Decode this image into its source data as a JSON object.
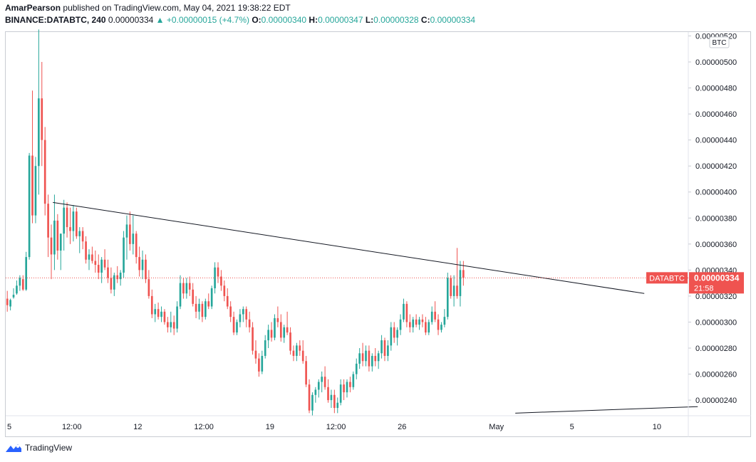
{
  "header": {
    "author": "AmarPearson",
    "published_text": "published on TradingView.com, May 04, 2021 19:38:22 EDT",
    "symbol": "BINANCE:DATABTC, 240",
    "last_price": "0.00000334",
    "change_text": "+0.00000015 (+4.7%)",
    "o_label": "O:",
    "o_value": "0.00000340",
    "h_label": "H:",
    "h_value": "0.00000347",
    "l_label": "L:",
    "l_value": "0.00000328",
    "c_label": "C:",
    "c_value": "0.00000334"
  },
  "footer": {
    "brand": "TradingView"
  },
  "colors": {
    "up": "#26a69a",
    "down": "#ef5350",
    "line": "#131722",
    "price_tag": "#ef5350",
    "dotted": "#ef5350"
  },
  "chart_data": {
    "type": "candlestick",
    "title": "BINANCE:DATABTC, 240",
    "currency_label": "BTC",
    "ylim": [
      2.28e-06,
      5.23e-06
    ],
    "y_ticks": [
      2.4e-06,
      2.6e-06,
      2.8e-06,
      3e-06,
      3.2e-06,
      3.4e-06,
      3.6e-06,
      3.8e-06,
      4e-06,
      4.2e-06,
      4.4e-06,
      4.6e-06,
      4.8e-06,
      5e-06,
      5.2e-06
    ],
    "y_tick_labels": [
      "0.00000240",
      "0.00000260",
      "0.00000280",
      "0.00000300",
      "0.00000320",
      "0.00000340",
      "0.00000360",
      "0.00000380",
      "0.00000400",
      "0.00000420",
      "0.00000440",
      "0.00000460",
      "0.00000480",
      "0.00000500",
      "0.00000520"
    ],
    "x_range": [
      0,
      217
    ],
    "x_ticks": [
      {
        "x": 0,
        "label": "5"
      },
      {
        "x": 21,
        "label": "12:00"
      },
      {
        "x": 42,
        "label": "12"
      },
      {
        "x": 63,
        "label": "12:00"
      },
      {
        "x": 84,
        "label": "19"
      },
      {
        "x": 105,
        "label": "12:00"
      },
      {
        "x": 126,
        "label": "26"
      },
      {
        "x": 156,
        "label": "May"
      },
      {
        "x": 180,
        "label": "5"
      },
      {
        "x": 207,
        "label": "10"
      }
    ],
    "price_label": {
      "symbol": "DATABTC",
      "price": "0.00000334",
      "value": 3.34e-06,
      "countdown": "21:58"
    },
    "trendlines": [
      {
        "from": [
          15,
          3.92e-06
        ],
        "to": [
          203,
          3.22e-06
        ]
      },
      {
        "from": [
          162,
          2.3e-06
        ],
        "to": [
          220,
          2.35e-06
        ]
      }
    ],
    "candles": [
      [
        3.18e-06,
        3.24e-06,
        3.08e-06,
        3.13e-06
      ],
      [
        3.12e-06,
        3.18e-06,
        3.09e-06,
        3.17e-06
      ],
      [
        3.19e-06,
        3.26e-06,
        3.18e-06,
        3.21e-06
      ],
      [
        3.22e-06,
        3.32e-06,
        3.21e-06,
        3.28e-06
      ],
      [
        3.28e-06,
        3.36e-06,
        3.24e-06,
        3.34e-06
      ],
      [
        3.33e-06,
        3.36e-06,
        3.24e-06,
        3.25e-06
      ],
      [
        3.25e-06,
        3.54e-06,
        3.24e-06,
        3.5e-06
      ],
      [
        3.5e-06,
        4.3e-06,
        3.48e-06,
        4.28e-06
      ],
      [
        4.28e-06,
        4.78e-06,
        3.76e-06,
        3.82e-06
      ],
      [
        3.82e-06,
        4.27e-06,
        3.76e-06,
        4.2e-06
      ],
      [
        4.2e-06,
        5.25e-06,
        3.98e-06,
        4.72e-06
      ],
      [
        4.72e-06,
        5e-06,
        4.2e-06,
        4.4e-06
      ],
      [
        4.4e-06,
        4.5e-06,
        3.82e-06,
        3.91e-06
      ],
      [
        3.91e-06,
        3.98e-06,
        3.5e-06,
        3.65e-06
      ],
      [
        3.65e-06,
        3.75e-06,
        3.33e-06,
        3.52e-06
      ],
      [
        3.52e-06,
        3.98e-06,
        3.4e-06,
        3.78e-06
      ],
      [
        3.78e-06,
        3.83e-06,
        3.48e-06,
        3.55e-06
      ],
      [
        3.55e-06,
        3.68e-06,
        3.4e-06,
        3.68e-06
      ],
      [
        3.68e-06,
        3.94e-06,
        3.55e-06,
        3.88e-06
      ],
      [
        3.88e-06,
        3.92e-06,
        3.65e-06,
        3.73e-06
      ],
      [
        3.73e-06,
        3.88e-06,
        3.6e-06,
        3.7e-06
      ],
      [
        3.7e-06,
        3.9e-06,
        3.62e-06,
        3.85e-06
      ],
      [
        3.85e-06,
        3.88e-06,
        3.64e-06,
        3.66e-06
      ],
      [
        3.66e-06,
        3.73e-06,
        3.53e-06,
        3.7e-06
      ],
      [
        3.7e-06,
        3.73e-06,
        3.56e-06,
        3.62e-06
      ],
      [
        3.62e-06,
        3.66e-06,
        3.45e-06,
        3.48e-06
      ],
      [
        3.48e-06,
        3.56e-06,
        3.4e-06,
        3.52e-06
      ],
      [
        3.52e-06,
        3.58e-06,
        3.45e-06,
        3.47e-06
      ],
      [
        3.47e-06,
        3.55e-06,
        3.38e-06,
        3.44e-06
      ],
      [
        3.44e-06,
        3.52e-06,
        3.33e-06,
        3.38e-06
      ],
      [
        3.38e-06,
        3.5e-06,
        3.3e-06,
        3.48e-06
      ],
      [
        3.48e-06,
        3.56e-06,
        3.4e-06,
        3.42e-06
      ],
      [
        3.42e-06,
        3.48e-06,
        3.3e-06,
        3.34e-06
      ],
      [
        3.34e-06,
        3.42e-06,
        3.22e-06,
        3.25e-06
      ],
      [
        3.25e-06,
        3.38e-06,
        3.2e-06,
        3.36e-06
      ],
      [
        3.36e-06,
        3.43e-06,
        3.3e-06,
        3.33e-06
      ],
      [
        3.33e-06,
        3.4e-06,
        3.28e-06,
        3.38e-06
      ],
      [
        3.38e-06,
        3.7e-06,
        3.34e-06,
        3.65e-06
      ],
      [
        3.65e-06,
        3.82e-06,
        3.48e-06,
        3.75e-06
      ],
      [
        3.75e-06,
        3.85e-06,
        3.55e-06,
        3.6e-06
      ],
      [
        3.6e-06,
        3.82e-06,
        3.52e-06,
        3.68e-06
      ],
      [
        3.68e-06,
        3.7e-06,
        3.45e-06,
        3.5e-06
      ],
      [
        3.5e-06,
        3.58e-06,
        3.35e-06,
        3.4e-06
      ],
      [
        3.4e-06,
        3.55e-06,
        3.33e-06,
        3.48e-06
      ],
      [
        3.48e-06,
        3.52e-06,
        3.3e-06,
        3.33e-06
      ],
      [
        3.33e-06,
        3.4e-06,
        3.18e-06,
        3.2e-06
      ],
      [
        3.2e-06,
        3.25e-06,
        3.03e-06,
        3.06e-06
      ],
      [
        3.06e-06,
        3.14e-06,
        3e-06,
        3.1e-06
      ],
      [
        3.1e-06,
        3.15e-06,
        3.02e-06,
        3.04e-06
      ],
      [
        3.04e-06,
        3.12e-06,
        3e-06,
        3.08e-06
      ],
      [
        3.08e-06,
        3.1e-06,
        2.98e-06,
        3e-06
      ],
      [
        3e-06,
        3.04e-06,
        2.92e-06,
        2.96e-06
      ],
      [
        2.96e-06,
        3.08e-06,
        2.92e-06,
        3e-06
      ],
      [
        3e-06,
        3.05e-06,
        2.9e-06,
        2.95e-06
      ],
      [
        2.95e-06,
        3.16e-06,
        2.92e-06,
        3.12e-06
      ],
      [
        3.12e-06,
        3.36e-06,
        3.1e-06,
        3.3e-06
      ],
      [
        3.3e-06,
        3.34e-06,
        3.18e-06,
        3.22e-06
      ],
      [
        3.22e-06,
        3.34e-06,
        3.18e-06,
        3.3e-06
      ],
      [
        3.3e-06,
        3.35e-06,
        3.2e-06,
        3.25e-06
      ],
      [
        3.25e-06,
        3.3e-06,
        3.12e-06,
        3.14e-06
      ],
      [
        3.14e-06,
        3.2e-06,
        3.03e-06,
        3.08e-06
      ],
      [
        3.08e-06,
        3.18e-06,
        3.02e-06,
        3.14e-06
      ],
      [
        3.14e-06,
        3.16e-06,
        3e-06,
        3.04e-06
      ],
      [
        3.04e-06,
        3.18e-06,
        3.02e-06,
        3.16e-06
      ],
      [
        3.16e-06,
        3.22e-06,
        3.1e-06,
        3.12e-06
      ],
      [
        3.12e-06,
        3.28e-06,
        3.1e-06,
        3.26e-06
      ],
      [
        3.26e-06,
        3.46e-06,
        3.22e-06,
        3.42e-06
      ],
      [
        3.42e-06,
        3.46e-06,
        3.3e-06,
        3.35e-06
      ],
      [
        3.35e-06,
        3.4e-06,
        3.24e-06,
        3.28e-06
      ],
      [
        3.28e-06,
        3.32e-06,
        3.16e-06,
        3.2e-06
      ],
      [
        3.2e-06,
        3.26e-06,
        3.1e-06,
        3.12e-06
      ],
      [
        3.12e-06,
        3.16e-06,
        3e-06,
        3.04e-06
      ],
      [
        3.04e-06,
        3.08e-06,
        2.9e-06,
        2.92e-06
      ],
      [
        2.92e-06,
        3.02e-06,
        2.9e-06,
        3e-06
      ],
      [
        3e-06,
        3.1e-06,
        2.96e-06,
        3.06e-06
      ],
      [
        3.06e-06,
        3.12e-06,
        3e-06,
        3.1e-06
      ],
      [
        3.1e-06,
        3.12e-06,
        2.96e-06,
        3.02e-06
      ],
      [
        3.02e-06,
        3.08e-06,
        2.92e-06,
        2.96e-06
      ],
      [
        2.96e-06,
        3e-06,
        2.75e-06,
        2.78e-06
      ],
      [
        2.78e-06,
        2.86e-06,
        2.68e-06,
        2.72e-06
      ],
      [
        2.72e-06,
        2.76e-06,
        2.58e-06,
        2.62e-06
      ],
      [
        2.62e-06,
        2.78e-06,
        2.6e-06,
        2.74e-06
      ],
      [
        2.74e-06,
        2.9e-06,
        2.72e-06,
        2.86e-06
      ],
      [
        2.86e-06,
        2.98e-06,
        2.8e-06,
        2.94e-06
      ],
      [
        2.94e-06,
        3e-06,
        2.85e-06,
        2.88e-06
      ],
      [
        2.88e-06,
        3.06e-06,
        2.86e-06,
        3.03e-06
      ],
      [
        3.03e-06,
        3.12e-06,
        2.96e-06,
        3e-06
      ],
      [
        3e-06,
        3.06e-06,
        2.85e-06,
        2.88e-06
      ],
      [
        2.88e-06,
        2.98e-06,
        2.84e-06,
        2.96e-06
      ],
      [
        2.96e-06,
        3.08e-06,
        2.9e-06,
        2.92e-06
      ],
      [
        2.92e-06,
        2.96e-06,
        2.75e-06,
        2.78e-06
      ],
      [
        2.78e-06,
        2.82e-06,
        2.7e-06,
        2.74e-06
      ],
      [
        2.74e-06,
        2.84e-06,
        2.7e-06,
        2.82e-06
      ],
      [
        2.82e-06,
        2.86e-06,
        2.74e-06,
        2.78e-06
      ],
      [
        2.78e-06,
        2.86e-06,
        2.68e-06,
        2.7e-06
      ],
      [
        2.7e-06,
        2.74e-06,
        2.5e-06,
        2.52e-06
      ],
      [
        2.52e-06,
        2.56e-06,
        2.3e-06,
        2.32e-06
      ],
      [
        2.32e-06,
        2.46e-06,
        2.28e-06,
        2.44e-06
      ],
      [
        2.44e-06,
        2.5e-06,
        2.38e-06,
        2.48e-06
      ],
      [
        2.48e-06,
        2.56e-06,
        2.42e-06,
        2.54e-06
      ],
      [
        2.54e-06,
        2.62e-06,
        2.46e-06,
        2.58e-06
      ],
      [
        2.58e-06,
        2.66e-06,
        2.48e-06,
        2.5e-06
      ],
      [
        2.5e-06,
        2.56e-06,
        2.38e-06,
        2.4e-06
      ],
      [
        2.4e-06,
        2.48e-06,
        2.34e-06,
        2.44e-06
      ],
      [
        2.44e-06,
        2.48e-06,
        2.3e-06,
        2.34e-06
      ],
      [
        2.34e-06,
        2.42e-06,
        2.3e-06,
        2.38e-06
      ],
      [
        2.38e-06,
        2.56e-06,
        2.36e-06,
        2.52e-06
      ],
      [
        2.52e-06,
        2.56e-06,
        2.4e-06,
        2.46e-06
      ],
      [
        2.46e-06,
        2.56e-06,
        2.42e-06,
        2.54e-06
      ],
      [
        2.54e-06,
        2.58e-06,
        2.46e-06,
        2.5e-06
      ],
      [
        2.5e-06,
        2.62e-06,
        2.48e-06,
        2.6e-06
      ],
      [
        2.6e-06,
        2.72e-06,
        2.56e-06,
        2.68e-06
      ],
      [
        2.68e-06,
        2.8e-06,
        2.64e-06,
        2.76e-06
      ],
      [
        2.76e-06,
        2.84e-06,
        2.66e-06,
        2.7e-06
      ],
      [
        2.7e-06,
        2.82e-06,
        2.66e-06,
        2.78e-06
      ],
      [
        2.78e-06,
        2.82e-06,
        2.62e-06,
        2.66e-06
      ],
      [
        2.66e-06,
        2.76e-06,
        2.62e-06,
        2.74e-06
      ],
      [
        2.74e-06,
        2.8e-06,
        2.66e-06,
        2.7e-06
      ],
      [
        2.7e-06,
        2.78e-06,
        2.64e-06,
        2.76e-06
      ],
      [
        2.76e-06,
        2.9e-06,
        2.72e-06,
        2.86e-06
      ],
      [
        2.86e-06,
        2.88e-06,
        2.7e-06,
        2.74e-06
      ],
      [
        2.74e-06,
        2.86e-06,
        2.7e-06,
        2.82e-06
      ],
      [
        2.82e-06,
        3e-06,
        2.78e-06,
        2.96e-06
      ],
      [
        2.96e-06,
        3e-06,
        2.84e-06,
        2.88e-06
      ],
      [
        2.88e-06,
        2.96e-06,
        2.82e-06,
        2.94e-06
      ],
      [
        2.94e-06,
        3.06e-06,
        2.9e-06,
        3.02e-06
      ],
      [
        3.02e-06,
        3.18e-06,
        3e-06,
        3.14e-06
      ],
      [
        3.14e-06,
        3.16e-06,
        2.96e-06,
        3e-06
      ],
      [
        3e-06,
        3.06e-06,
        2.92e-06,
        2.96e-06
      ],
      [
        2.96e-06,
        3.04e-06,
        2.92e-06,
        3.02e-06
      ],
      [
        3.02e-06,
        3.06e-06,
        2.96e-06,
        2.98e-06
      ],
      [
        2.98e-06,
        3.04e-06,
        2.94e-06,
        3.02e-06
      ],
      [
        3.02e-06,
        3.06e-06,
        2.96e-06,
        3e-06
      ],
      [
        3e-06,
        3.04e-06,
        2.9e-06,
        2.92e-06
      ],
      [
        2.92e-06,
        3.02e-06,
        2.9e-06,
        3e-06
      ],
      [
        3e-06,
        3.12e-06,
        2.98e-06,
        3.08e-06
      ],
      [
        3.08e-06,
        3.16e-06,
        3e-06,
        3.02e-06
      ],
      [
        3.02e-06,
        3.06e-06,
        2.9e-06,
        2.94e-06
      ],
      [
        2.94e-06,
        3e-06,
        2.92e-06,
        2.98e-06
      ],
      [
        2.98e-06,
        3.1e-06,
        2.96e-06,
        3.04e-06
      ],
      [
        3.04e-06,
        3.38e-06,
        3.02e-06,
        3.34e-06
      ],
      [
        3.34e-06,
        3.36e-06,
        3.18e-06,
        3.2e-06
      ],
      [
        3.2e-06,
        3.36e-06,
        3.12e-06,
        3.28e-06
      ],
      [
        3.28e-06,
        3.57e-06,
        3.18e-06,
        3.2e-06
      ],
      [
        3.2e-06,
        3.47e-06,
        3.12e-06,
        3.4e-06
      ],
      [
        3.4e-06,
        3.47e-06,
        3.28e-06,
        3.34e-06
      ]
    ]
  }
}
